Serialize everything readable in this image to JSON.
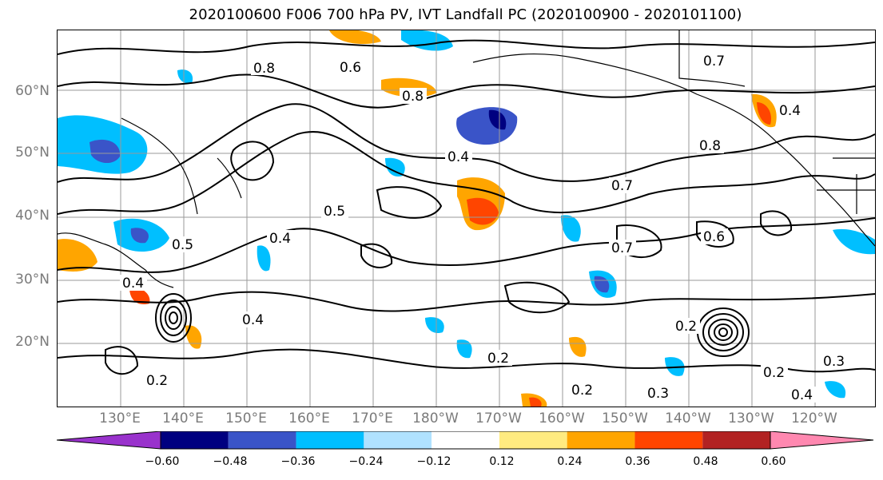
{
  "title": "2020100600 F006 700 hPa PV, IVT Landfall PC (2020100900 - 2020101100)",
  "map": {
    "lat_labels": [
      "60°N",
      "50°N",
      "40°N",
      "30°N",
      "20°N"
    ],
    "lon_labels": [
      "130°E",
      "140°E",
      "150°E",
      "160°E",
      "170°E",
      "180°W",
      "170°W",
      "160°W",
      "150°W",
      "140°W",
      "130°W",
      "120°W"
    ],
    "contour_labels": [
      "0.2",
      "0.3",
      "0.4",
      "0.5",
      "0.6",
      "0.7",
      "0.8"
    ],
    "grid": true,
    "coastlines": true
  },
  "colorbar": {
    "colors": [
      "#9932cc",
      "#000080",
      "#3a54c8",
      "#00bfff",
      "#b0e2ff",
      "#ffffff",
      "#ffeb80",
      "#ffa500",
      "#ff4500",
      "#b22222",
      "#ff88b0"
    ],
    "tick_labels": [
      "−0.60",
      "−0.48",
      "−0.36",
      "−0.24",
      "−0.12",
      "0.12",
      "0.24",
      "0.36",
      "0.48",
      "0.60"
    ],
    "extend": "both"
  }
}
